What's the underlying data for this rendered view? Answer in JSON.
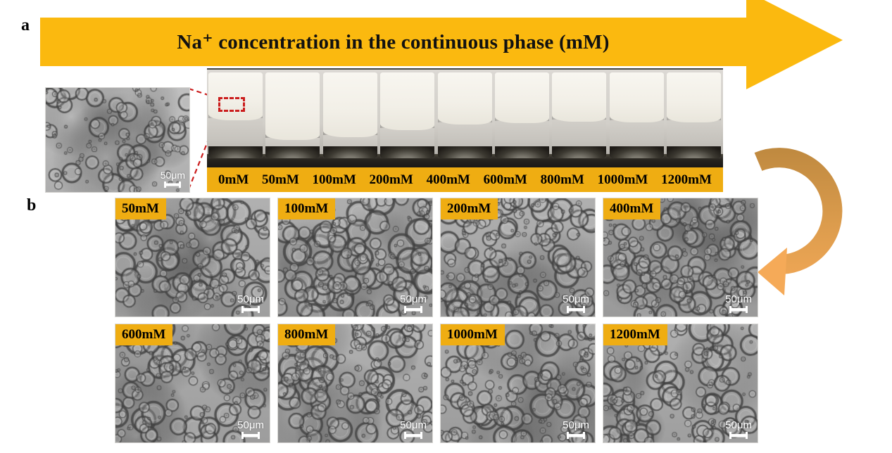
{
  "figure": {
    "panel_a_label": "a",
    "panel_b_label": "b",
    "arrow_title": "Na⁺ concentration in the continuous phase (mM)",
    "vial_labels": [
      "0mM",
      "50mM",
      "100mM",
      "200mM",
      "400mM",
      "600mM",
      "800mM",
      "1000mM",
      "1200mM"
    ],
    "inset": {
      "scale_label": "50μm"
    },
    "micrographs": [
      {
        "label": "50mM",
        "scale_label": "50μm"
      },
      {
        "label": "100mM",
        "scale_label": "50μm"
      },
      {
        "label": "200mM",
        "scale_label": "50μm"
      },
      {
        "label": "400mM",
        "scale_label": "50μm"
      },
      {
        "label": "600mM",
        "scale_label": "50μm"
      },
      {
        "label": "800mM",
        "scale_label": "50μm"
      },
      {
        "label": "1000mM",
        "scale_label": "50μm"
      },
      {
        "label": "1200mM",
        "scale_label": "50μm"
      }
    ]
  },
  "colors": {
    "banner_yellow": "#FBB90F",
    "label_yellow": "#EFAD12",
    "red_accent": "#CB1D1D",
    "curved_arrow_dark": "#C08A40",
    "curved_arrow_light": "#F5AA58",
    "scale_bar_white": "#FFFFFF"
  }
}
